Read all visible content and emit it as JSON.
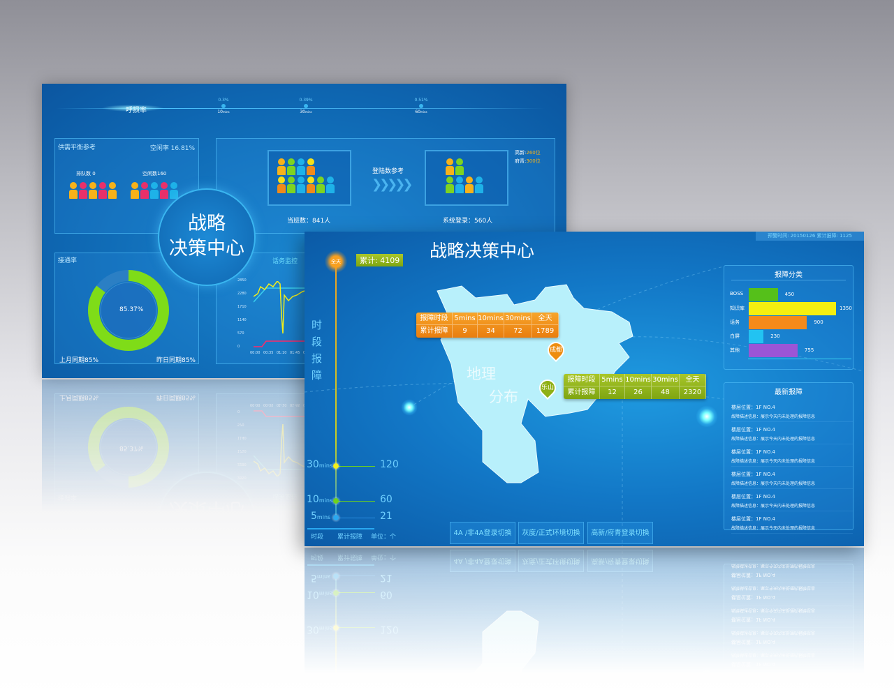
{
  "back": {
    "rate_label": "呼损率",
    "rate_points": [
      {
        "value": "0.3%",
        "time": "10",
        "unit": "mins"
      },
      {
        "value": "0.39%",
        "time": "30",
        "unit": "mins"
      },
      {
        "value": "0.51%",
        "time": "60",
        "unit": "mins"
      }
    ],
    "supply": {
      "title": "供需平衡参考",
      "idle_rate": "空闲率 16.81%",
      "queue": "排队数 0",
      "idle": "空闲数160"
    },
    "center_title_1": "战略",
    "center_title_2": "决策中心",
    "login": {
      "label": "登陆数参考",
      "on_duty": "当班数：841人",
      "system_login": "系统登录：560人",
      "gaoxin_label": "高新:",
      "gaoxin_val": "260位",
      "fuqing_label": "府青:",
      "fuqing_val": "300位"
    },
    "connect": {
      "title": "接通率",
      "value": "85.37%",
      "percent": 85.37,
      "last_month": "上月同期85%",
      "yesterday": "昨日同期85%"
    },
    "traffic": {
      "title": "话务监控",
      "y_ticks": [
        "2850",
        "2280",
        "1710",
        "1140",
        "570",
        "0"
      ],
      "x_ticks": [
        "00:00",
        "00:35",
        "01:10",
        "01:45",
        "02:"
      ]
    }
  },
  "front": {
    "title": "战略决策中心",
    "top_info": "预警时间: 20150126   累计报障: 1125",
    "total": "累计: 4109",
    "allday": "全天",
    "side_title": [
      "时",
      "段",
      "报",
      "障"
    ],
    "timeline": [
      {
        "num": "30",
        "unit": "mins",
        "value": "120",
        "color": "#f5f01a"
      },
      {
        "num": "10",
        "unit": "mins",
        "value": "60",
        "color": "#6fd21a"
      },
      {
        "num": "5",
        "unit": "mins",
        "value": "21",
        "color": "#2aa8f0"
      }
    ],
    "footer": {
      "col1": "时段",
      "col2": "累计报障",
      "unit": "单位：个"
    },
    "map_label_1": "地理",
    "map_label_2": "分布",
    "chengdu": {
      "name": "成都",
      "header": [
        "报障时段",
        "5mins",
        "10mins",
        "30mins",
        "全天"
      ],
      "row": [
        "累计报障",
        "9",
        "34",
        "72",
        "1789"
      ]
    },
    "leshan": {
      "name": "乐山",
      "header": [
        "报障时段",
        "5mins",
        "10mins",
        "30mins",
        "全天"
      ],
      "row": [
        "累计报障",
        "12",
        "26",
        "48",
        "2320"
      ]
    },
    "category": {
      "title": "报障分类"
    },
    "news": {
      "title": "最新报障",
      "items": [
        {
          "loc": "楼层位置：1F NO.4",
          "desc": "故障描述信息：展示今天内未处理的报障信息"
        },
        {
          "loc": "楼层位置：1F NO.4",
          "desc": "故障描述信息：展示今天内未处理的报障信息"
        },
        {
          "loc": "楼层位置：1F NO.4",
          "desc": "故障描述信息：展示今天内未处理的报障信息"
        },
        {
          "loc": "楼层位置：1F NO.4",
          "desc": "故障描述信息：展示今天内未处理的报障信息"
        },
        {
          "loc": "楼层位置：1F NO.4",
          "desc": "故障描述信息：展示今天内未处理的报障信息"
        },
        {
          "loc": "楼层位置：1F NO.4",
          "desc": "故障描述信息：展示今天内未处理的报障信息"
        }
      ]
    },
    "buttons": [
      "4A /非4A登录切换",
      "灰度/正式环境切换",
      "高新/府青登录切换"
    ]
  },
  "chart_data": {
    "type": "bar",
    "title": "报障分类",
    "orientation": "horizontal",
    "categories": [
      "BOSS",
      "知识库",
      "话务",
      "白屏",
      "其他"
    ],
    "values": [
      450,
      1350,
      900,
      230,
      755
    ],
    "colors": [
      "#55c01a",
      "#f5ef10",
      "#f58a1a",
      "#22c3f2",
      "#9b55d6"
    ]
  }
}
